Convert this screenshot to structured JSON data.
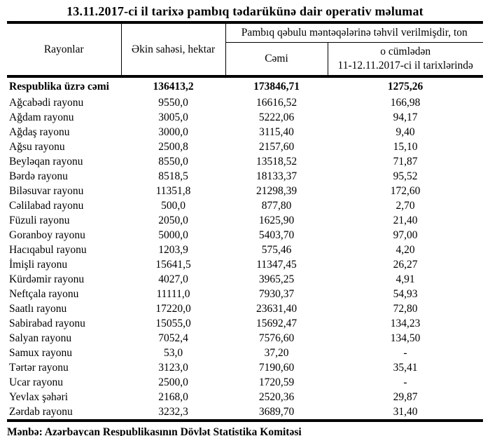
{
  "title": "13.11.2017-ci il tarixə pambıq tədarükünə dair operativ məlumat",
  "table": {
    "columns": {
      "regions": "Rayonlar",
      "area": "Əkin sahəsi, hektar",
      "delivered_group": "Pambıq qəbulu məntəqələrinə təhvil verilmişdir, ton",
      "total": "Cəmi",
      "including_line1": "o cümlədən",
      "including_line2": "11-12.11.2017-ci il tarixlərində"
    },
    "rows": [
      {
        "name": "Respublika üzrə cəmi",
        "area": "136413,2",
        "total": "173846,71",
        "recent": "1275,26",
        "bold": true
      },
      {
        "name": "Ağcabədi rayonu",
        "area": "9550,0",
        "total": "16616,52",
        "recent": "166,98"
      },
      {
        "name": "Ağdam rayonu",
        "area": "3005,0",
        "total": "5222,06",
        "recent": "94,17"
      },
      {
        "name": "Ağdaş rayonu",
        "area": "3000,0",
        "total": "3115,40",
        "recent": "9,40"
      },
      {
        "name": "Ağsu rayonu",
        "area": "2500,8",
        "total": "2157,60",
        "recent": "15,10"
      },
      {
        "name": "Beyləqan rayonu",
        "area": "8550,0",
        "total": "13518,52",
        "recent": "71,87"
      },
      {
        "name": "Bərdə rayonu",
        "area": "8518,5",
        "total": "18133,37",
        "recent": "95,52"
      },
      {
        "name": "Biləsuvar rayonu",
        "area": "11351,8",
        "total": "21298,39",
        "recent": "172,60"
      },
      {
        "name": "Cəlilabad rayonu",
        "area": "500,0",
        "total": "877,80",
        "recent": "2,70"
      },
      {
        "name": "Füzuli rayonu",
        "area": "2050,0",
        "total": "1625,90",
        "recent": "21,40"
      },
      {
        "name": "Goranboy rayonu",
        "area": "5000,0",
        "total": "5403,70",
        "recent": "97,00"
      },
      {
        "name": "Hacıqabul rayonu",
        "area": "1203,9",
        "total": "575,46",
        "recent": "4,20"
      },
      {
        "name": "İmişli rayonu",
        "area": "15641,5",
        "total": "11347,45",
        "recent": "26,27"
      },
      {
        "name": "Kürdəmir rayonu",
        "area": "4027,0",
        "total": "3965,25",
        "recent": "4,91"
      },
      {
        "name": "Neftçala rayonu",
        "area": "11111,0",
        "total": "7930,37",
        "recent": "54,93"
      },
      {
        "name": "Saatlı rayonu",
        "area": "17220,0",
        "total": "23631,40",
        "recent": "72,80"
      },
      {
        "name": "Sabirabad rayonu",
        "area": "15055,0",
        "total": "15692,47",
        "recent": "134,23"
      },
      {
        "name": "Salyan rayonu",
        "area": "7052,4",
        "total": "7576,60",
        "recent": "134,50"
      },
      {
        "name": "Samux rayonu",
        "area": "53,0",
        "total": "37,20",
        "recent": "-"
      },
      {
        "name": "Tərtər rayonu",
        "area": "3123,0",
        "total": "7190,60",
        "recent": "35,41"
      },
      {
        "name": "Ucar rayonu",
        "area": "2500,0",
        "total": "1720,59",
        "recent": "-"
      },
      {
        "name": "Yevlax şəhəri",
        "area": "2168,0",
        "total": "2520,36",
        "recent": "29,87"
      },
      {
        "name": "Zərdab rayonu",
        "area": "3232,3",
        "total": "3689,70",
        "recent": "31,40"
      }
    ],
    "source": "Mənbə: Azərbaycan Respublikasının Dövlət Statistika Komitəsi"
  },
  "colors": {
    "text": "#000000",
    "background": "#ffffff",
    "rule": "#000000"
  }
}
